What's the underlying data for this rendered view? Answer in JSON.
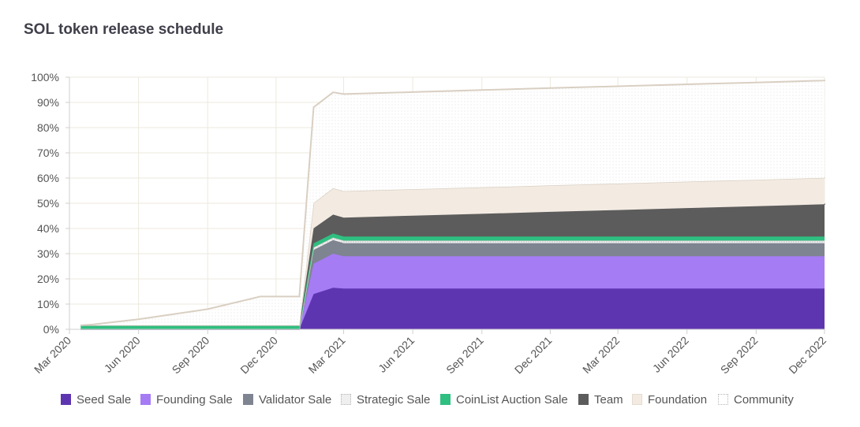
{
  "title": "SOL token release schedule",
  "chart_data": {
    "type": "area",
    "stacked": true,
    "x": [
      "2020-03-16",
      "2020-04-01",
      "2020-06-01",
      "2020-09-01",
      "2020-11-10",
      "2020-12-01",
      "2021-01-01",
      "2021-01-20",
      "2021-02-15",
      "2021-03-01",
      "2021-06-01",
      "2021-09-01",
      "2021-12-01",
      "2022-03-01",
      "2022-06-01",
      "2022-09-01",
      "2022-12-01",
      "2022-12-31"
    ],
    "x_ticks": [
      "Mar 2020",
      "Jun 2020",
      "Sep 2020",
      "Dec 2020",
      "Mar 2021",
      "Jun 2021",
      "Sep 2021",
      "Dec 2021",
      "Mar 2022",
      "Jun 2022",
      "Sep 2022",
      "Dec 2022"
    ],
    "y_ticks": [
      "0%",
      "10%",
      "20%",
      "30%",
      "40%",
      "50%",
      "60%",
      "70%",
      "80%",
      "90%",
      "100%"
    ],
    "ylim": [
      0,
      100
    ],
    "grid": true,
    "legend_position": "bottom",
    "series": [
      {
        "name": "Seed Sale",
        "color": "#5e35b1",
        "fill": "solid",
        "values": [
          0,
          0,
          0,
          0,
          0,
          0,
          0,
          14,
          16.5,
          16.2,
          16.2,
          16.2,
          16.2,
          16.2,
          16.2,
          16.2,
          16.2,
          16.2
        ]
      },
      {
        "name": "Founding Sale",
        "color": "#a57cf4",
        "fill": "solid",
        "values": [
          0,
          0,
          0,
          0,
          0,
          0,
          0,
          12,
          13.5,
          12.8,
          12.8,
          12.8,
          12.8,
          12.8,
          12.8,
          12.8,
          12.8,
          12.8
        ]
      },
      {
        "name": "Validator Sale",
        "color": "#7e8490",
        "fill": "solid",
        "values": [
          0,
          0,
          0,
          0,
          0,
          0,
          0,
          5.5,
          5.4,
          5.2,
          5.2,
          5.2,
          5.2,
          5.2,
          5.2,
          5.2,
          5.2,
          5.2
        ]
      },
      {
        "name": "Strategic Sale",
        "color": "#e6e6e6",
        "fill": "pattern",
        "values": [
          0,
          0,
          0,
          0,
          0,
          0,
          0,
          1.0,
          1.0,
          1.0,
          1.0,
          1.0,
          1.0,
          1.0,
          1.0,
          1.0,
          1.0,
          1.0
        ]
      },
      {
        "name": "CoinList Auction Sale",
        "color": "#2fbf80",
        "fill": "solid",
        "values": [
          1.6,
          1.6,
          1.6,
          1.6,
          1.6,
          1.6,
          1.6,
          1.6,
          1.6,
          1.6,
          1.6,
          1.6,
          1.6,
          1.6,
          1.6,
          1.6,
          1.6,
          1.6
        ]
      },
      {
        "name": "Team",
        "color": "#5c5c5c",
        "fill": "solid",
        "values": [
          0,
          0,
          0,
          0,
          0,
          0,
          0,
          6.0,
          7.5,
          7.5,
          8.3,
          9.0,
          9.8,
          10.5,
          11.3,
          12.0,
          12.8,
          13.1
        ]
      },
      {
        "name": "Foundation",
        "color": "#f3ebe2",
        "fill": "solid",
        "values": [
          0,
          0,
          0,
          0,
          0,
          0,
          0,
          10.0,
          10.5,
          10.5,
          10.5,
          10.5,
          10.5,
          10.5,
          10.5,
          10.5,
          10.5,
          10.5
        ]
      },
      {
        "name": "Community",
        "color": "#ffffff",
        "fill": "pattern",
        "values": [
          0,
          0.3,
          2.4,
          6.4,
          11.4,
          11.4,
          11.4,
          38.0,
          38.0,
          38.5,
          38.5,
          38.6,
          38.6,
          38.6,
          38.6,
          38.6,
          38.6,
          38.6
        ]
      }
    ]
  }
}
